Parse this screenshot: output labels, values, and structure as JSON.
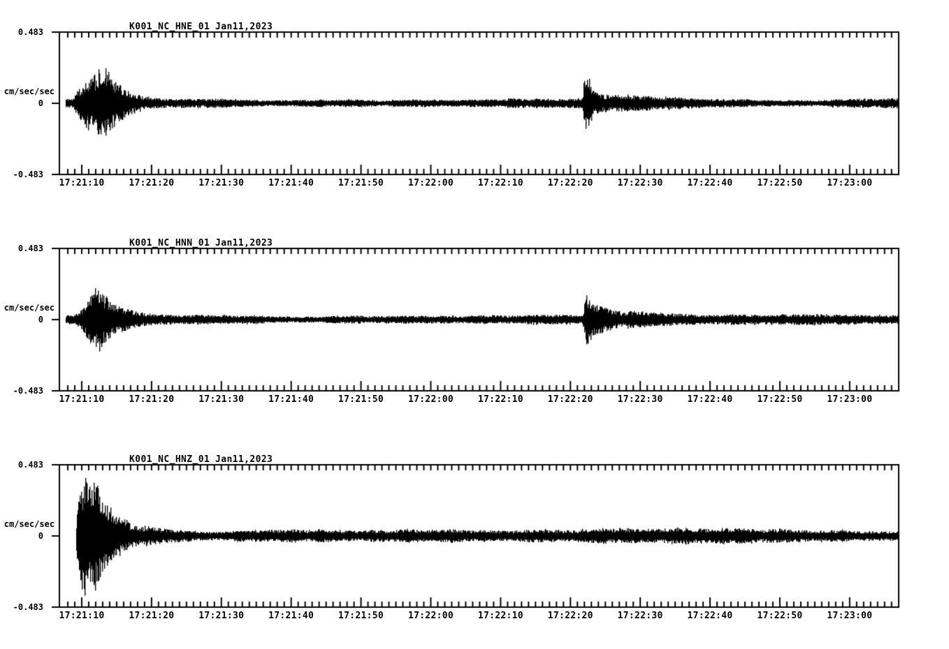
{
  "page": {
    "background_color": "#ffffff",
    "trace_color": "#000000"
  },
  "chart_data": [
    {
      "type": "line",
      "subtype": "seismogram",
      "title": "K001_NC_HNE_01",
      "date_label": "Jan11,2023",
      "ylabel": "cm/sec/sec",
      "y_tick_labels": [
        "0.483",
        "0",
        "-0.483"
      ],
      "ylim": [
        -0.483,
        0.483
      ],
      "x_axis": {
        "start": "17:21:06.8",
        "end": "17:23:07.0",
        "major_tick_sec": 10,
        "minor_tick_sec": 1
      },
      "x_tick_labels": [
        "17:21:10",
        "17:21:20",
        "17:21:30",
        "17:21:40",
        "17:21:50",
        "17:22:00",
        "17:22:10",
        "17:22:20",
        "17:22:30",
        "17:22:40",
        "17:22:50",
        "17:23:00"
      ],
      "grid": false,
      "legend": false,
      "events": [
        {
          "time": "17:21:12",
          "peak_amplitude": 0.27
        },
        {
          "time": "17:22:22",
          "peak_amplitude": 0.17
        }
      ],
      "envelope_format": "[seconds_from_axis_start, peak_amplitude_cm_per_sec2]",
      "envelope": [
        [
          0.9,
          0.03
        ],
        [
          2.0,
          0.035
        ],
        [
          2.6,
          0.09
        ],
        [
          3.4,
          0.14
        ],
        [
          4.2,
          0.19
        ],
        [
          5.0,
          0.22
        ],
        [
          5.7,
          0.27
        ],
        [
          6.4,
          0.23
        ],
        [
          7.2,
          0.2
        ],
        [
          8.0,
          0.165
        ],
        [
          9.0,
          0.125
        ],
        [
          10.0,
          0.1
        ],
        [
          11.0,
          0.08
        ],
        [
          12.0,
          0.065
        ],
        [
          13.5,
          0.052
        ],
        [
          15.0,
          0.044
        ],
        [
          17.0,
          0.037
        ],
        [
          20.0,
          0.031
        ],
        [
          24.0,
          0.028
        ],
        [
          30.0,
          0.026
        ],
        [
          40.0,
          0.028
        ],
        [
          50.0,
          0.026
        ],
        [
          60.0,
          0.028
        ],
        [
          68.0,
          0.027
        ],
        [
          74.8,
          0.028
        ],
        [
          75.3,
          0.17
        ],
        [
          75.9,
          0.145
        ],
        [
          76.4,
          0.08
        ],
        [
          77.5,
          0.06
        ],
        [
          79.0,
          0.05
        ],
        [
          81.0,
          0.044
        ],
        [
          84.0,
          0.037
        ],
        [
          88.0,
          0.032
        ],
        [
          95.0,
          0.029
        ],
        [
          105.0,
          0.028
        ],
        [
          115.0,
          0.027
        ],
        [
          120.2,
          0.027
        ]
      ]
    },
    {
      "type": "line",
      "subtype": "seismogram",
      "title": "K001_NC_HNN_01",
      "date_label": "Jan11,2023",
      "ylabel": "cm/sec/sec",
      "y_tick_labels": [
        "0.483",
        "0",
        "-0.483"
      ],
      "ylim": [
        -0.483,
        0.483
      ],
      "x_axis": {
        "start": "17:21:06.8",
        "end": "17:23:07.0",
        "major_tick_sec": 10,
        "minor_tick_sec": 1
      },
      "x_tick_labels": [
        "17:21:10",
        "17:21:20",
        "17:21:30",
        "17:21:40",
        "17:21:50",
        "17:22:00",
        "17:22:10",
        "17:22:20",
        "17:22:30",
        "17:22:40",
        "17:22:50",
        "17:23:00"
      ],
      "grid": false,
      "legend": false,
      "events": [
        {
          "time": "17:21:12",
          "peak_amplitude": 0.18
        },
        {
          "time": "17:22:22",
          "peak_amplitude": 0.16
        }
      ],
      "envelope_format": "[seconds_from_axis_start, peak_amplitude_cm_per_sec2]",
      "envelope": [
        [
          0.9,
          0.028
        ],
        [
          2.2,
          0.032
        ],
        [
          3.0,
          0.07
        ],
        [
          3.8,
          0.11
        ],
        [
          4.6,
          0.155
        ],
        [
          5.2,
          0.18
        ],
        [
          6.0,
          0.165
        ],
        [
          6.8,
          0.14
        ],
        [
          7.6,
          0.12
        ],
        [
          8.6,
          0.1
        ],
        [
          10.0,
          0.082
        ],
        [
          11.5,
          0.066
        ],
        [
          13.0,
          0.053
        ],
        [
          15.0,
          0.042
        ],
        [
          17.5,
          0.034
        ],
        [
          21.0,
          0.029
        ],
        [
          26.0,
          0.026
        ],
        [
          35.0,
          0.024
        ],
        [
          45.0,
          0.025
        ],
        [
          55.0,
          0.024
        ],
        [
          65.0,
          0.025
        ],
        [
          72.0,
          0.025
        ],
        [
          74.9,
          0.026
        ],
        [
          75.4,
          0.16
        ],
        [
          76.0,
          0.14
        ],
        [
          76.6,
          0.085
        ],
        [
          78.0,
          0.062
        ],
        [
          80.0,
          0.05
        ],
        [
          83.0,
          0.042
        ],
        [
          87.0,
          0.034
        ],
        [
          93.0,
          0.03
        ],
        [
          103.0,
          0.028
        ],
        [
          113.0,
          0.027
        ],
        [
          120.2,
          0.027
        ]
      ]
    },
    {
      "type": "line",
      "subtype": "seismogram",
      "title": "K001_NC_HNZ_01",
      "date_label": "Jan11,2023",
      "ylabel": "cm/sec/sec",
      "y_tick_labels": [
        "0.483",
        "0",
        "-0.483"
      ],
      "ylim": [
        -0.483,
        0.483
      ],
      "x_axis": {
        "start": "17:21:06.8",
        "end": "17:23:07.0",
        "major_tick_sec": 10,
        "minor_tick_sec": 1
      },
      "x_tick_labels": [
        "17:21:10",
        "17:21:20",
        "17:21:30",
        "17:21:40",
        "17:21:50",
        "17:22:00",
        "17:22:10",
        "17:22:20",
        "17:22:30",
        "17:22:40",
        "17:22:50",
        "17:23:00"
      ],
      "grid": false,
      "legend": false,
      "events": [
        {
          "time": "17:21:11",
          "peak_amplitude": 0.4
        },
        {
          "time": "17:22:22",
          "peak_amplitude": 0.06
        }
      ],
      "envelope_format": "[seconds_from_axis_start, peak_amplitude_cm_per_sec2]",
      "envelope": [
        [
          2.4,
          0.1
        ],
        [
          2.7,
          0.24
        ],
        [
          3.1,
          0.31
        ],
        [
          3.6,
          0.4
        ],
        [
          4.1,
          0.31
        ],
        [
          4.7,
          0.34
        ],
        [
          5.4,
          0.38
        ],
        [
          6.0,
          0.31
        ],
        [
          6.7,
          0.27
        ],
        [
          7.4,
          0.21
        ],
        [
          8.2,
          0.16
        ],
        [
          9.2,
          0.115
        ],
        [
          10.2,
          0.085
        ],
        [
          11.5,
          0.068
        ],
        [
          13.0,
          0.058
        ],
        [
          15.0,
          0.05
        ],
        [
          18.0,
          0.044
        ],
        [
          22.0,
          0.04
        ],
        [
          28.0,
          0.038
        ],
        [
          38.0,
          0.037
        ],
        [
          50.0,
          0.038
        ],
        [
          62.0,
          0.039
        ],
        [
          70.0,
          0.04
        ],
        [
          74.0,
          0.042
        ],
        [
          75.8,
          0.058
        ],
        [
          77.5,
          0.05
        ],
        [
          80.0,
          0.046
        ],
        [
          85.0,
          0.043
        ],
        [
          95.0,
          0.041
        ],
        [
          105.0,
          0.04
        ],
        [
          113.0,
          0.039
        ],
        [
          120.2,
          0.04
        ]
      ]
    }
  ]
}
